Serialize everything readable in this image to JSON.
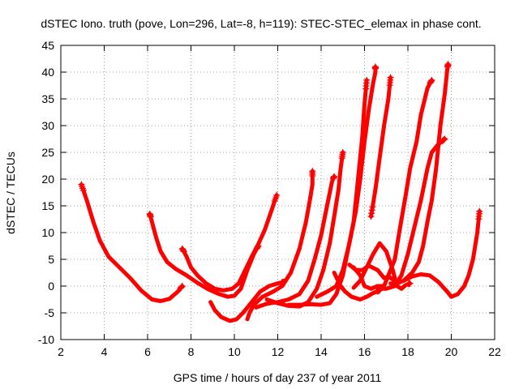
{
  "chart_data": {
    "type": "scatter",
    "title": "dSTEC Iono. truth (pove, Lon=296, Lat=-8, h=119): STEC-STEC_elemax in phase cont.",
    "xlabel": "GPS time / hours of day 237 of year 2011",
    "ylabel": "dSTEC  / TECUs",
    "xlim": [
      2,
      22
    ],
    "ylim": [
      -10,
      45
    ],
    "x_ticks": [
      "2",
      "4",
      "6",
      "8",
      "10",
      "12",
      "14",
      "16",
      "18",
      "20",
      "22"
    ],
    "y_ticks": [
      "-10",
      "-5",
      "0",
      "5",
      "10",
      "15",
      "20",
      "25",
      "30",
      "35",
      "40",
      "45"
    ],
    "grid": true,
    "legend": "none",
    "marker": "+",
    "color": "#ff0000",
    "series": [
      {
        "points": [
          [
            2.95,
            19
          ],
          [
            3.2,
            16
          ],
          [
            3.5,
            12
          ],
          [
            3.8,
            8.5
          ],
          [
            4.2,
            5.5
          ],
          [
            4.7,
            3.5
          ],
          [
            5.2,
            1.5
          ],
          [
            5.7,
            -0.8
          ],
          [
            6.2,
            -2.5
          ],
          [
            6.6,
            -2.8
          ],
          [
            7.0,
            -2.4
          ],
          [
            7.4,
            -1
          ],
          [
            7.6,
            0
          ]
        ]
      },
      {
        "points": [
          [
            6.1,
            13.5
          ],
          [
            6.2,
            12
          ],
          [
            6.4,
            9
          ],
          [
            6.6,
            6.5
          ],
          [
            6.9,
            4.5
          ],
          [
            7.3,
            3.2
          ],
          [
            7.8,
            2
          ],
          [
            8.3,
            0.6
          ],
          [
            8.8,
            -0.6
          ],
          [
            9.3,
            -1.5
          ],
          [
            9.7,
            -2
          ],
          [
            10.0,
            -1.8
          ],
          [
            10.3,
            -0.5
          ],
          [
            10.6,
            3
          ],
          [
            10.9,
            6
          ],
          [
            11.1,
            7.5
          ]
        ]
      },
      {
        "points": [
          [
            7.6,
            7
          ],
          [
            7.8,
            5.5
          ],
          [
            8.0,
            3.5
          ],
          [
            8.3,
            2
          ],
          [
            8.7,
            0.5
          ],
          [
            9.1,
            -0.5
          ],
          [
            9.5,
            -0.8
          ],
          [
            9.9,
            -0.5
          ],
          [
            10.2,
            0.5
          ],
          [
            10.5,
            3
          ],
          [
            10.8,
            5.5
          ],
          [
            11.1,
            7.8
          ],
          [
            11.4,
            10.5
          ],
          [
            11.7,
            14
          ],
          [
            11.95,
            17
          ]
        ]
      },
      {
        "points": [
          [
            8.9,
            -3
          ],
          [
            9.1,
            -4.5
          ],
          [
            9.4,
            -5.8
          ],
          [
            9.8,
            -6.5
          ],
          [
            10.1,
            -6.2
          ],
          [
            10.4,
            -5
          ],
          [
            10.8,
            -3
          ],
          [
            11.2,
            -1
          ],
          [
            11.6,
            0
          ],
          [
            12.0,
            0.5
          ],
          [
            12.3,
            0.8
          ]
        ]
      },
      {
        "points": [
          [
            10.6,
            -6.2
          ],
          [
            10.7,
            -5
          ],
          [
            10.9,
            -3.5
          ],
          [
            11.3,
            -2
          ],
          [
            11.8,
            -1
          ],
          [
            12.2,
            0
          ],
          [
            12.6,
            2.5
          ],
          [
            13.0,
            7
          ],
          [
            13.3,
            12
          ],
          [
            13.5,
            16.5
          ],
          [
            13.6,
            19
          ],
          [
            13.6,
            21.5
          ]
        ]
      },
      {
        "points": [
          [
            11.0,
            -4
          ],
          [
            11.5,
            -3.3
          ],
          [
            12.0,
            -3
          ],
          [
            12.5,
            -2.5
          ],
          [
            13.0,
            -1.5
          ],
          [
            13.4,
            1
          ],
          [
            13.7,
            5
          ],
          [
            14.0,
            9.5
          ],
          [
            14.2,
            13.5
          ],
          [
            14.4,
            17.5
          ],
          [
            14.5,
            19.5
          ],
          [
            14.6,
            20.5
          ]
        ]
      },
      {
        "points": [
          [
            11.5,
            -2.5
          ],
          [
            12.0,
            -3.2
          ],
          [
            12.5,
            -3.7
          ],
          [
            13.0,
            -3.8
          ],
          [
            13.4,
            -3
          ],
          [
            13.8,
            -0.5
          ],
          [
            14.1,
            3
          ],
          [
            14.4,
            8
          ],
          [
            14.6,
            13
          ],
          [
            14.8,
            18
          ],
          [
            14.9,
            22
          ],
          [
            15.0,
            25
          ]
        ]
      },
      {
        "points": [
          [
            12.5,
            -3.5
          ],
          [
            13.0,
            -3.5
          ],
          [
            13.5,
            -3.4
          ],
          [
            14.0,
            -3.5
          ],
          [
            14.4,
            -3.2
          ],
          [
            14.7,
            -1.5
          ],
          [
            15.0,
            2
          ],
          [
            15.2,
            6
          ],
          [
            15.5,
            12
          ],
          [
            15.7,
            20
          ],
          [
            15.9,
            28
          ],
          [
            16.0,
            34
          ],
          [
            16.1,
            38.5
          ]
        ]
      },
      {
        "points": [
          [
            13.8,
            -2
          ],
          [
            14.3,
            -1
          ],
          [
            14.7,
            0
          ],
          [
            15.0,
            3
          ],
          [
            15.3,
            8
          ],
          [
            15.6,
            14
          ],
          [
            15.8,
            20
          ],
          [
            16.0,
            27
          ],
          [
            16.2,
            33
          ],
          [
            16.4,
            38
          ],
          [
            16.5,
            40
          ],
          [
            16.5,
            41
          ]
        ]
      },
      {
        "points": [
          [
            14.6,
            2.5
          ],
          [
            14.9,
            0
          ],
          [
            15.1,
            -1
          ],
          [
            15.4,
            -2
          ],
          [
            15.8,
            -2.5
          ],
          [
            16.1,
            -2
          ],
          [
            16.4,
            -1.3
          ],
          [
            16.7,
            -0.8
          ]
        ]
      },
      {
        "points": [
          [
            15.3,
            4
          ],
          [
            15.6,
            3
          ],
          [
            15.9,
            3
          ],
          [
            16.2,
            3.8
          ],
          [
            16.6,
            3
          ],
          [
            16.9,
            1.5
          ],
          [
            17.1,
            1.8
          ],
          [
            17.4,
            1
          ]
        ]
      },
      {
        "points": [
          [
            15.5,
            -0.3
          ],
          [
            15.8,
            1
          ],
          [
            16.1,
            3.5
          ],
          [
            16.4,
            6
          ],
          [
            16.7,
            8
          ],
          [
            17.0,
            6.5
          ],
          [
            17.3,
            3
          ],
          [
            17.5,
            0
          ],
          [
            17.7,
            -0.5
          ],
          [
            17.9,
            0.2
          ],
          [
            18.1,
            0.5
          ]
        ]
      },
      {
        "points": [
          [
            15.5,
            3.5
          ],
          [
            15.8,
            2
          ],
          [
            16.0,
            0
          ],
          [
            16.3,
            -0.5
          ],
          [
            16.6,
            0
          ],
          [
            16.9,
            0
          ],
          [
            17.1,
            2
          ],
          [
            17.4,
            5
          ],
          [
            17.6,
            10
          ],
          [
            17.9,
            17
          ],
          [
            18.1,
            22
          ],
          [
            18.4,
            27
          ],
          [
            18.6,
            32
          ],
          [
            18.9,
            37
          ],
          [
            19.1,
            38.5
          ]
        ]
      },
      {
        "points": [
          [
            16.6,
            -0.5
          ],
          [
            17.0,
            -0.5
          ],
          [
            17.4,
            0
          ],
          [
            17.7,
            2
          ],
          [
            18.0,
            6
          ],
          [
            18.3,
            11
          ],
          [
            18.6,
            16
          ],
          [
            18.9,
            22
          ],
          [
            19.1,
            25
          ],
          [
            19.4,
            26.5
          ],
          [
            19.7,
            27.5
          ]
        ]
      },
      {
        "points": [
          [
            16.3,
            13
          ],
          [
            16.5,
            18
          ],
          [
            16.7,
            24
          ],
          [
            16.9,
            30
          ],
          [
            17.1,
            35
          ],
          [
            17.2,
            39
          ]
        ]
      },
      {
        "points": [
          [
            17.2,
            0.5
          ],
          [
            17.5,
            0.5
          ],
          [
            17.8,
            1
          ],
          [
            18.2,
            2.5
          ],
          [
            18.5,
            4.5
          ],
          [
            18.7,
            7.5
          ],
          [
            18.9,
            12
          ],
          [
            19.1,
            16
          ],
          [
            19.3,
            22
          ],
          [
            19.5,
            30
          ],
          [
            19.7,
            36
          ],
          [
            19.8,
            40
          ],
          [
            19.85,
            41.5
          ]
        ]
      },
      {
        "points": [
          [
            17.8,
            1
          ],
          [
            18.2,
            1.8
          ],
          [
            18.6,
            2.2
          ],
          [
            19.0,
            2
          ],
          [
            19.4,
            0.8
          ],
          [
            19.8,
            -1
          ],
          [
            20.0,
            -2
          ],
          [
            20.3,
            -1.5
          ],
          [
            20.6,
            0
          ],
          [
            20.8,
            2
          ],
          [
            21.0,
            5
          ],
          [
            21.2,
            10
          ],
          [
            21.3,
            14
          ]
        ]
      }
    ]
  }
}
